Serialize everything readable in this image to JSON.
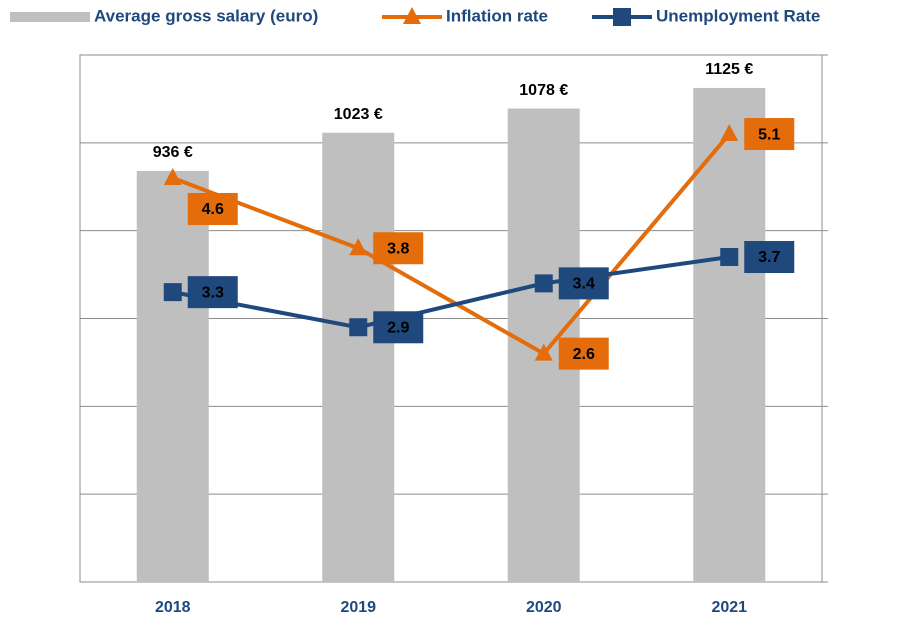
{
  "chart_data": {
    "type": "bar_line",
    "categories": [
      "2018",
      "2019",
      "2020",
      "2021"
    ],
    "ylim": [
      0,
      1200
    ],
    "yticks": [
      0,
      200,
      400,
      600,
      800,
      1000,
      1200
    ],
    "y2lim": [
      0,
      6
    ],
    "grid": true,
    "legend": "top",
    "series": [
      {
        "name": "Average gross salary (euro)",
        "type": "bar",
        "color": "#bfbfbf",
        "values": [
          936,
          1023,
          1078,
          1125
        ],
        "value_labels": [
          "936 €",
          "1023 €",
          "1078 €",
          "1125 €"
        ]
      },
      {
        "name": "Inflation rate",
        "type": "line",
        "marker": "triangle",
        "axis": "y2",
        "color": "#e46c0a",
        "values": [
          4.6,
          3.8,
          2.6,
          5.1
        ]
      },
      {
        "name": "Unemployment Rate",
        "type": "line",
        "marker": "square",
        "axis": "y2",
        "color": "#1f497d",
        "values": [
          3.3,
          2.9,
          3.4,
          3.7
        ]
      }
    ]
  }
}
